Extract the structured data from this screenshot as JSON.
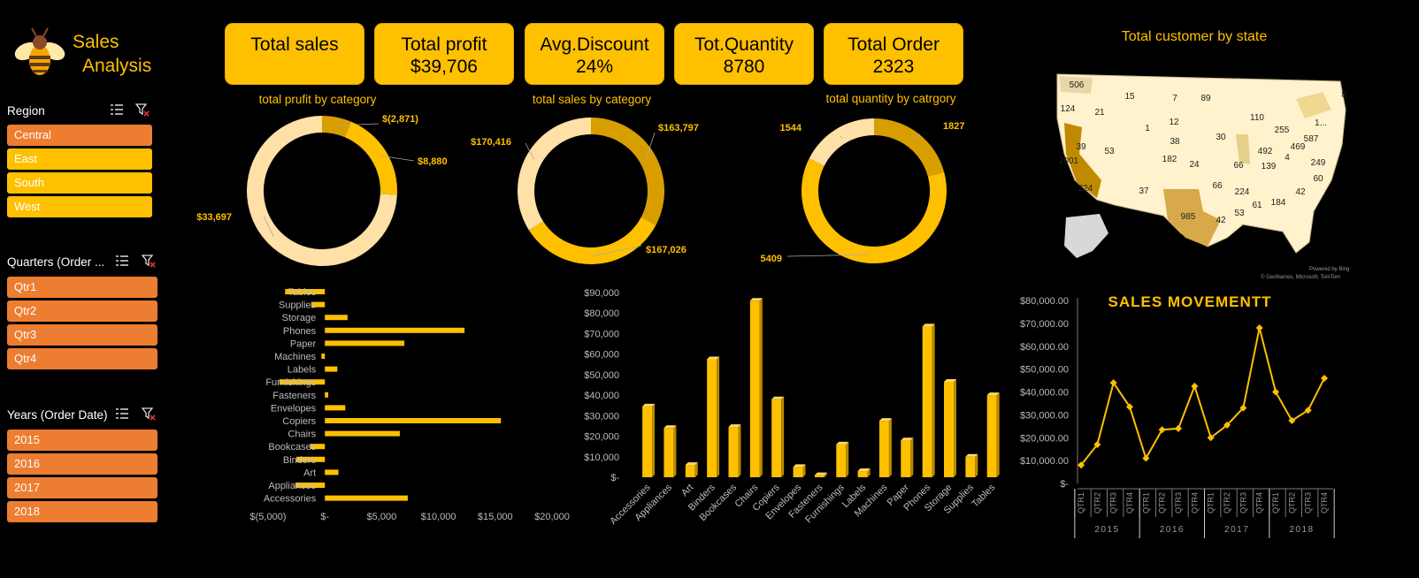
{
  "header": {
    "title_line1": "Sales",
    "title_line2": "Analysis"
  },
  "colors": {
    "accent": "#FFC000",
    "dark_gold": "#D89E00",
    "light": "#FFE0A6",
    "orange": "#ED7D31"
  },
  "slicers": {
    "region": {
      "title": "Region",
      "items": [
        "Central",
        "East",
        "South",
        "West"
      ],
      "selected": "Central"
    },
    "quarters": {
      "title": "Quarters (Order ...",
      "items": [
        "Qtr1",
        "Qtr2",
        "Qtr3",
        "Qtr4"
      ]
    },
    "years": {
      "title": "Years (Order Date)",
      "items": [
        "2015",
        "2016",
        "2017",
        "2018"
      ]
    }
  },
  "kpis": [
    {
      "label": "Total sales",
      "value": ""
    },
    {
      "label": "Total profit",
      "value": "$39,706"
    },
    {
      "label": "Avg.Discount",
      "value": "24%"
    },
    {
      "label": "Tot.Quantity",
      "value": "8780"
    },
    {
      "label": "Total Order",
      "value": "2323"
    }
  ],
  "map": {
    "title": "Total customer by state",
    "attribution1": "Powered by Bing",
    "attribution2": "© GeoNames, Microsoft, TomTom",
    "labels": [
      "506",
      "15",
      "7",
      "89",
      "8",
      "124",
      "21",
      "12",
      "110",
      "255",
      "1...",
      "1",
      "587",
      "39",
      "53",
      "182",
      "38",
      "30",
      "492",
      "469",
      "2001",
      "24",
      "66",
      "4",
      "139",
      "224",
      "249",
      "66",
      "60",
      "224",
      "37",
      "42",
      "985",
      "53",
      "61",
      "184",
      "42"
    ]
  },
  "chart_data": [
    {
      "type": "pie",
      "title": "total prufit by category",
      "labels": [
        "Furniture",
        "Office Supplies",
        "Technology"
      ],
      "values": [
        -2871,
        8880,
        33697
      ],
      "data_labels": [
        "$(2,871)",
        "$8,880",
        "$33,697"
      ]
    },
    {
      "type": "pie",
      "title": "total sales by category",
      "labels": [
        "Furniture",
        "Office Supplies",
        "Technology"
      ],
      "values": [
        163797,
        167026,
        170416
      ],
      "data_labels": [
        "$163,797",
        "$167,026",
        "$170,416"
      ]
    },
    {
      "type": "pie",
      "title": "total quantity by catrgory",
      "labels": [
        "Furniture",
        "Office Supplies",
        "Technology"
      ],
      "values": [
        1827,
        5409,
        1544
      ],
      "data_labels": [
        "1827",
        "5409",
        "1544"
      ]
    },
    {
      "type": "bar",
      "orientation": "horizontal",
      "categories": [
        "Tables",
        "Supplies",
        "Storage",
        "Phones",
        "Paper",
        "Machines",
        "Labels",
        "Furnishings",
        "Fasteners",
        "Envelopes",
        "Copiers",
        "Chairs",
        "Bookcases",
        "Binders",
        "Art",
        "Appliances",
        "Accessories"
      ],
      "values": [
        -3500,
        -1200,
        2000,
        12300,
        7000,
        -300,
        1100,
        -4000,
        300,
        1800,
        15500,
        6600,
        -1300,
        -2500,
        1200,
        -2600,
        7300
      ],
      "xlim": [
        -5000,
        20000
      ],
      "xticks": [
        "$(5,000)",
        "$-",
        "$5,000",
        "$10,000",
        "$15,000",
        "$20,000"
      ],
      "grid": false
    },
    {
      "type": "bar",
      "categories": [
        "Accessories",
        "Appliances",
        "Art",
        "Binders",
        "Bookcases",
        "Chairs",
        "Copiers",
        "Envelopes",
        "Fasteners",
        "Furnishings",
        "Labels",
        "Machines",
        "Paper",
        "Phones",
        "Storage",
        "Supplies",
        "Tables"
      ],
      "values": [
        34500,
        24000,
        6000,
        57500,
        24500,
        86000,
        38000,
        5000,
        1000,
        16000,
        3000,
        27500,
        18000,
        73500,
        46500,
        10000,
        40000
      ],
      "ylim": [
        0,
        90000
      ],
      "yticks": [
        "$-",
        "$10,000",
        "$20,000",
        "$30,000",
        "$40,000",
        "$50,000",
        "$60,000",
        "$70,000",
        "$80,000",
        "$90,000"
      ],
      "grid": false
    },
    {
      "type": "line",
      "title": "SALES MOVEMENTT",
      "quarters": [
        "QTR1",
        "QTR2",
        "QTR3",
        "QTR4",
        "QTR1",
        "QTR2",
        "QTR3",
        "QTR4",
        "QTR1",
        "QTR2",
        "QTR3",
        "QTR4",
        "QTR1",
        "QTR2",
        "QTR3",
        "QTR4"
      ],
      "years": [
        "2015",
        "2016",
        "2017",
        "2018"
      ],
      "values": [
        8000,
        17000,
        44000,
        33500,
        11000,
        23500,
        24000,
        42500,
        20000,
        25500,
        33000,
        68000,
        40000,
        27500,
        32000,
        46000
      ],
      "ylim": [
        0,
        80000
      ],
      "yticks": [
        "$-",
        "$10,000.00",
        "$20,000.00",
        "$30,000.00",
        "$40,000.00",
        "$50,000.00",
        "$60,000.00",
        "$70,000.00",
        "$80,000.00"
      ],
      "grid": false
    }
  ]
}
